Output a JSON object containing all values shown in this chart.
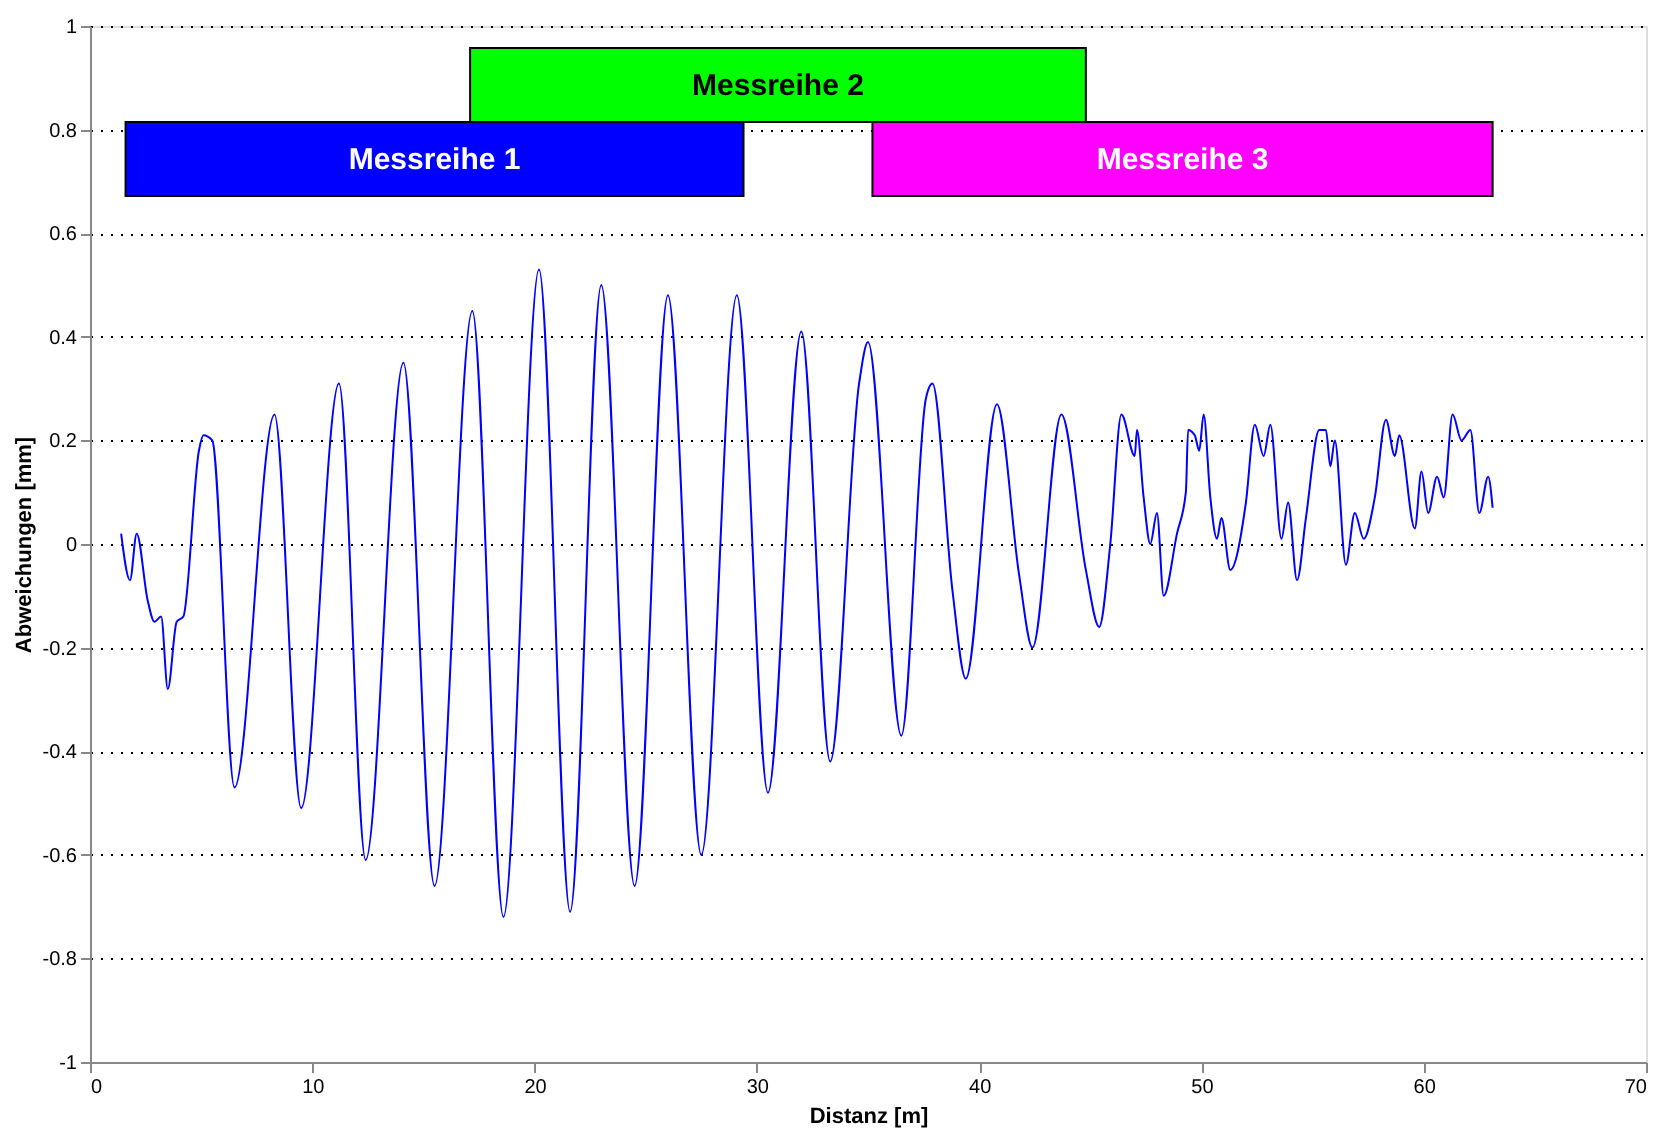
{
  "chart_data": {
    "type": "line",
    "xlabel": "Distanz [m]",
    "ylabel": "Abweichungen [mm]",
    "xlim": [
      0,
      70
    ],
    "xticks": [
      0,
      10,
      20,
      30,
      40,
      50,
      60,
      70
    ],
    "ylim": [
      -1,
      1
    ],
    "yticks": [
      -1,
      -0.8,
      -0.6,
      -0.4,
      -0.2,
      0,
      0.2,
      0.4,
      0.6,
      0.8,
      1
    ],
    "grid": "y",
    "marker": "none",
    "line_style": "solid",
    "bands": [
      {
        "axis": "x",
        "from": 1.6,
        "to": 29.4,
        "label": "Messreihe 1",
        "color": "#0000ff"
      },
      {
        "axis": "x",
        "from": 17.1,
        "to": 44.8,
        "label": "Messreihe 2",
        "color": "#00ff00"
      },
      {
        "axis": "x",
        "from": 35.2,
        "to": 63.1,
        "label": "Messreihe 3",
        "color": "#ff00ff"
      }
    ],
    "series": [
      {
        "color": "#0000ff",
        "x": [
          1.4,
          1.8,
          2.1,
          2.6,
          2.9,
          3.2,
          3.5,
          3.9,
          4.2,
          4.9,
          5.1,
          5.5,
          6.5,
          8.3,
          9.5,
          11.2,
          12.4,
          14.1,
          15.5,
          17.2,
          18.6,
          20.2,
          21.6,
          23.0,
          24.5,
          26.0,
          27.5,
          29.1,
          30.5,
          32.0,
          33.3,
          34.6,
          35.0,
          36.5,
          37.6,
          37.9,
          38.8,
          39.4,
          40.8,
          41.8,
          42.4,
          43.7,
          44.8,
          45.4,
          45.9,
          46.4,
          47.0,
          47.1,
          47.4,
          47.7,
          48.0,
          48.3,
          48.9,
          49.3,
          49.4,
          49.7,
          49.9,
          50.1,
          50.4,
          50.7,
          50.9,
          51.3,
          52.0,
          52.4,
          52.8,
          53.1,
          53.6,
          53.9,
          54.3,
          54.7,
          55.3,
          55.6,
          55.8,
          56.0,
          56.5,
          56.9,
          57.3,
          57.8,
          58.3,
          58.7,
          58.9,
          59.6,
          59.9,
          60.2,
          60.6,
          60.9,
          61.3,
          61.7,
          62.1,
          62.5,
          62.9,
          63.1
        ],
        "values": [
          0.02,
          -0.07,
          0.02,
          -0.11,
          -0.15,
          -0.14,
          -0.28,
          -0.15,
          -0.14,
          0.18,
          0.21,
          0.2,
          -0.47,
          0.25,
          -0.51,
          0.31,
          -0.61,
          0.35,
          -0.66,
          0.45,
          -0.72,
          0.53,
          -0.71,
          0.5,
          -0.66,
          0.48,
          -0.6,
          0.48,
          -0.48,
          0.41,
          -0.42,
          0.31,
          0.39,
          -0.37,
          0.28,
          0.31,
          -0.09,
          -0.26,
          0.27,
          -0.06,
          -0.2,
          0.25,
          -0.05,
          -0.16,
          0.0,
          0.25,
          0.17,
          0.22,
          0.09,
          0.0,
          0.06,
          -0.1,
          0.02,
          0.1,
          0.22,
          0.21,
          0.18,
          0.25,
          0.09,
          0.01,
          0.05,
          -0.05,
          0.08,
          0.23,
          0.17,
          0.23,
          0.01,
          0.08,
          -0.07,
          0.05,
          0.22,
          0.22,
          0.15,
          0.2,
          -0.04,
          0.06,
          0.01,
          0.09,
          0.24,
          0.17,
          0.21,
          0.03,
          0.14,
          0.06,
          0.13,
          0.09,
          0.25,
          0.2,
          0.22,
          0.06,
          0.13,
          0.07
        ]
      }
    ]
  }
}
